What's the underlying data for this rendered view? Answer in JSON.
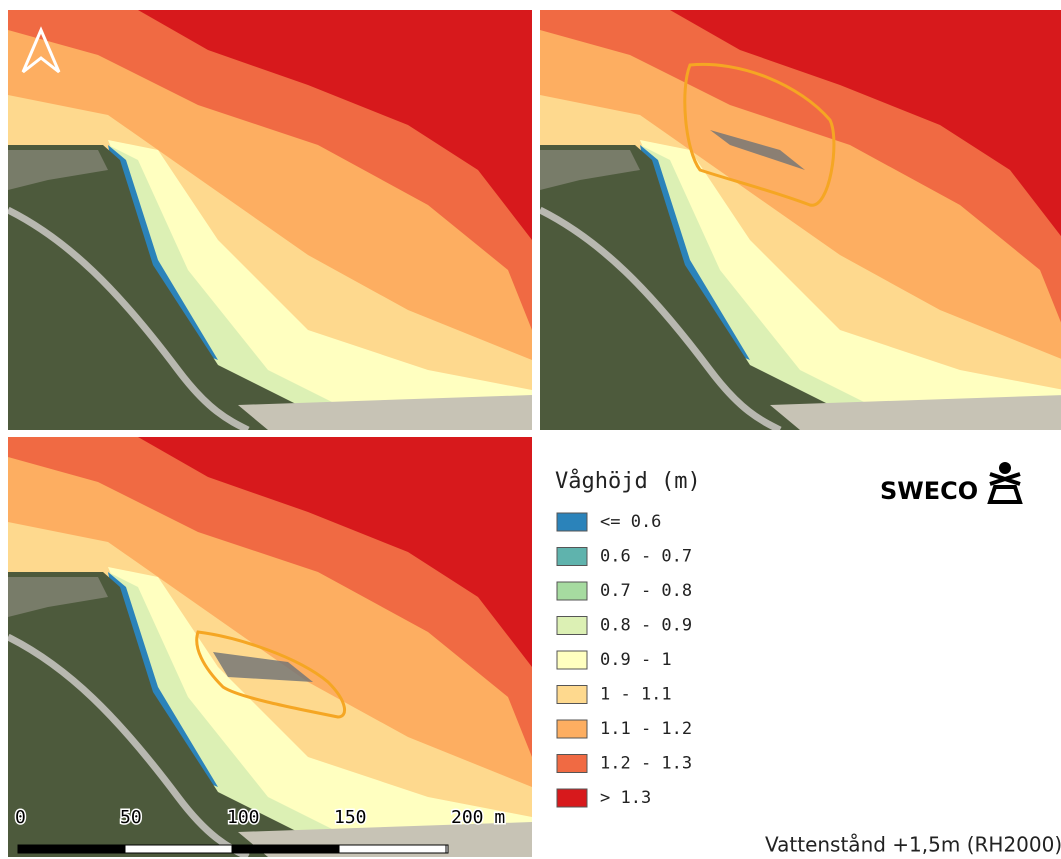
{
  "legend": {
    "title": "Våghöjd (m)",
    "items": [
      {
        "label": "<= 0.6",
        "color": "#2b83ba"
      },
      {
        "label": "0.6 - 0.7",
        "color": "#5fb3ad"
      },
      {
        "label": "0.7 - 0.8",
        "color": "#a6dba0"
      },
      {
        "label": "0.8 - 0.9",
        "color": "#dcf0b4"
      },
      {
        "label": "0.9 - 1",
        "color": "#ffffc0"
      },
      {
        "label": "1 - 1.1",
        "color": "#fed98e"
      },
      {
        "label": "1.1 - 1.2",
        "color": "#fdae61"
      },
      {
        "label": "1.2 - 1.3",
        "color": "#f06a43"
      },
      {
        "label": "> 1.3",
        "color": "#d7191c"
      }
    ]
  },
  "logo": "SWECO",
  "scale_bar": [
    "0",
    "50",
    "100",
    "150",
    "200 m"
  ],
  "caption": "Vattenstånd +1,5m (RH2000)"
}
